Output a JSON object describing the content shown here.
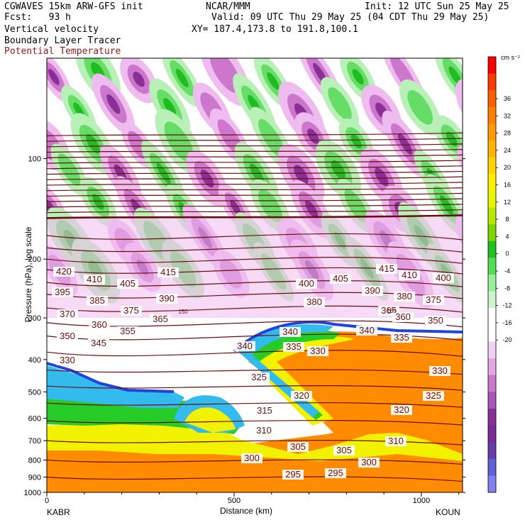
{
  "header": {
    "line1_left": "CGWAVES 15km ARW-GFS init",
    "line1_mid": "NCAR/MMM",
    "line1_right": "Init: 12 UTC Sun 25 May 25",
    "line2_left": "Fcst:   93 h",
    "line2_right": "Valid: 09 UTC Thu 29 May 25 (04 CDT Thu 29 May 25)",
    "line3_left": "Vertical velocity",
    "line3_right": "XY= 187.4,173.8 to 191.8,100.1",
    "line4_left": "Boundary Layer Tracer",
    "line5_left": "Potential Temperature"
  },
  "colors": {
    "theta_line": "#6b0d0d",
    "bl_orange": "#ff8c00",
    "bl_yellow": "#f2f200",
    "bl_green": "#28cc28",
    "bl_cyan": "#33bbee",
    "bl_blue": "#2244dd",
    "w_pos_light": "#b8f0b8",
    "w_pos_mid": "#66dd66",
    "w_pos_strong": "#22bb22",
    "w_neg_light": "#eebcee",
    "w_neg_mid": "#cc77cc",
    "w_neg_strong": "#8a2f98"
  },
  "chart_data": {
    "type": "heatmap",
    "title": "Vertical velocity / Boundary Layer Tracer / Potential Temperature",
    "xlabel": "Distance (km)",
    "ylabel": "Pressure (hPa), log scale",
    "xlim": [
      0,
      1110
    ],
    "ylim": [
      1000,
      50
    ],
    "x_ticks": [
      0,
      500,
      1000
    ],
    "y_ticks": [
      100,
      200,
      300,
      400,
      500,
      600,
      700,
      800,
      900,
      1000
    ],
    "x_endpoints": [
      "KABR",
      "KOUN"
    ],
    "colorbar": {
      "unit": "cm s⁻¹",
      "tick_labels": [
        "36",
        "32",
        "28",
        "24",
        "20",
        "16",
        "12",
        "8",
        "4",
        "0",
        "-4",
        "-8",
        "-12",
        "-16",
        "-20"
      ],
      "colors": [
        "#ff0000",
        "#ff3a00",
        "#ff5e00",
        "#ff8000",
        "#ff9a00",
        "#ffb400",
        "#ffd200",
        "#ffee00",
        "#e6f500",
        "#b8e800",
        "#7ad800",
        "#22c022",
        "#55dd55",
        "#99ee99",
        "#ccf5cc",
        "#ffffff",
        "#ffffff",
        "#f2d0f2",
        "#e3a8e3",
        "#cc77cc",
        "#aa55bb",
        "#8a2f98",
        "#7a2a9a",
        "#6a3aa8",
        "#6060d8",
        "#8080ee"
      ]
    },
    "theta_contours": {
      "unit": "K",
      "labels": [
        "420",
        "415",
        "415",
        "410",
        "410",
        "405",
        "405",
        "400",
        "400",
        "395",
        "390",
        "390",
        "385",
        "380",
        "380",
        "375",
        "375",
        "370",
        "365",
        "365",
        "360",
        "360",
        "355",
        "350",
        "350",
        "345",
        "340",
        "340",
        "340",
        "335",
        "335",
        "330",
        "330",
        "330",
        "325",
        "325",
        "320",
        "320",
        "315",
        "310",
        "310",
        "305",
        "305",
        "300",
        "300",
        "295",
        "295"
      ]
    },
    "tropopause_label": "150"
  }
}
